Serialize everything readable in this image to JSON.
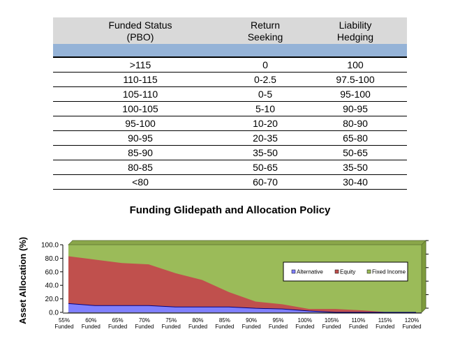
{
  "table": {
    "headers": [
      "Funded Status\n(PBO)",
      "Return\nSeeking",
      "Liability\nHedging"
    ],
    "header_lines": [
      [
        "Funded Status",
        "(PBO)"
      ],
      [
        "Return",
        "Seeking"
      ],
      [
        "Liability",
        "Hedging"
      ]
    ],
    "rows": [
      [
        ">115",
        "0",
        "100"
      ],
      [
        "110-115",
        "0-2.5",
        "97.5-100"
      ],
      [
        "105-110",
        "0-5",
        "95-100"
      ],
      [
        "100-105",
        "5-10",
        "90-95"
      ],
      [
        "95-100",
        "10-20",
        "80-90"
      ],
      [
        "90-95",
        "20-35",
        "65-80"
      ],
      [
        "85-90",
        "35-50",
        "50-65"
      ],
      [
        "80-85",
        "50-65",
        "35-50"
      ],
      [
        "<80",
        "60-70",
        "30-40"
      ]
    ]
  },
  "colors": {
    "alternative": "#8080ff",
    "equity": "#c0504d",
    "fixed_income": "#9bbb59",
    "header_bg": "#d9d9d9",
    "band_bg": "#95b3d7"
  },
  "chart_data": {
    "type": "area",
    "stacked": true,
    "title": "Funding Glidepath and Allocation Policy",
    "ylabel": "Asset Allocation (%)",
    "xlabel": "",
    "ylim": [
      0,
      100
    ],
    "yticks": [
      "100.0",
      "80.0",
      "60.0",
      "40.0",
      "20.0",
      "0.0"
    ],
    "ytick_values": [
      100,
      80,
      60,
      40,
      20,
      0
    ],
    "categories": [
      [
        "55%",
        "Funded"
      ],
      [
        "60%",
        "Funded"
      ],
      [
        "65%",
        "Funded"
      ],
      [
        "70%",
        "Funded"
      ],
      [
        "75%",
        "Funded"
      ],
      [
        "80%",
        "Funded"
      ],
      [
        "85%",
        "Funded"
      ],
      [
        "90%",
        "Funded"
      ],
      [
        "95%",
        "Funded"
      ],
      [
        "100%",
        "Funded"
      ],
      [
        "105%",
        "Funded"
      ],
      [
        "110%",
        "Funded"
      ],
      [
        "115%",
        "Funded"
      ],
      [
        "120%",
        "Funded"
      ]
    ],
    "series": [
      {
        "name": "Alternative",
        "values": [
          13,
          10,
          10,
          10,
          8,
          8,
          8,
          6,
          5,
          2,
          0,
          0,
          0,
          0
        ]
      },
      {
        "name": "Equity",
        "values": [
          70,
          68,
          63,
          61,
          50,
          40,
          22,
          10,
          7,
          3,
          5,
          3,
          0,
          0
        ]
      },
      {
        "name": "Fixed Income",
        "values": [
          17,
          22,
          27,
          29,
          42,
          52,
          70,
          84,
          88,
          95,
          95,
          97,
          100,
          100
        ]
      }
    ],
    "legend": [
      "Alternative",
      "Equity",
      "Fixed Income"
    ],
    "legend_position": "upper-right-inside"
  }
}
